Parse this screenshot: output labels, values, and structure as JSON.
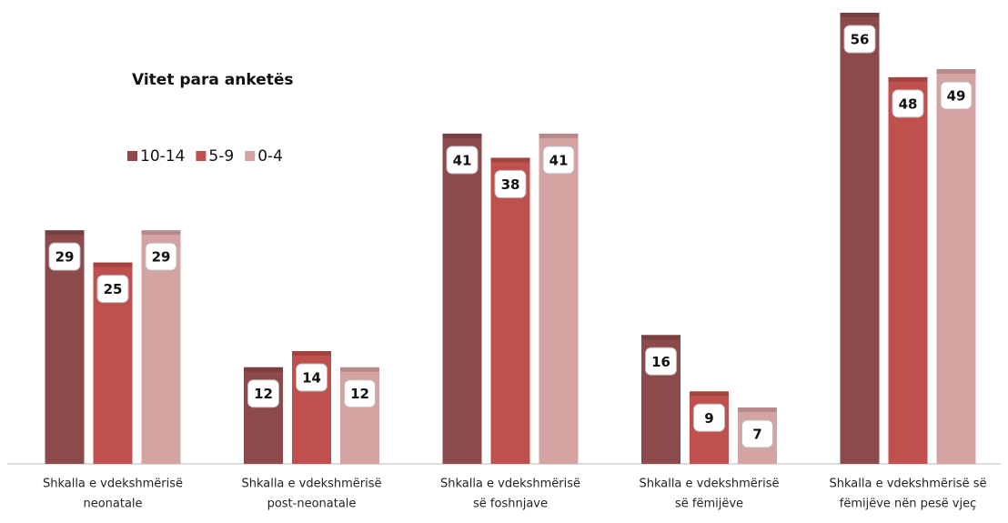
{
  "chart_data": {
    "type": "bar",
    "legend_title": "Vitet para anketës",
    "categories": [
      [
        "Shkalla e vdekshmërisë",
        "neonatale"
      ],
      [
        "Shkalla e vdekshmërisë",
        "post-neonatale"
      ],
      [
        "Shkalla e vdekshmërisë",
        "së foshnjave"
      ],
      [
        "Shkalla e vdekshmërisë",
        "së fëmijëve"
      ],
      [
        "Shkalla e vdekshmërisë së",
        "fëmijëve nën pesë vjeç"
      ]
    ],
    "series": [
      {
        "name": "10-14",
        "color": "#8c4a4b",
        "values": [
          29,
          12,
          41,
          16,
          56
        ]
      },
      {
        "name": "5-9",
        "color": "#c0504d",
        "values": [
          25,
          14,
          38,
          9,
          48
        ]
      },
      {
        "name": "0-4",
        "color": "#d6a3a3",
        "values": [
          29,
          12,
          41,
          7,
          49
        ]
      }
    ],
    "ylim": [
      0,
      56
    ]
  }
}
